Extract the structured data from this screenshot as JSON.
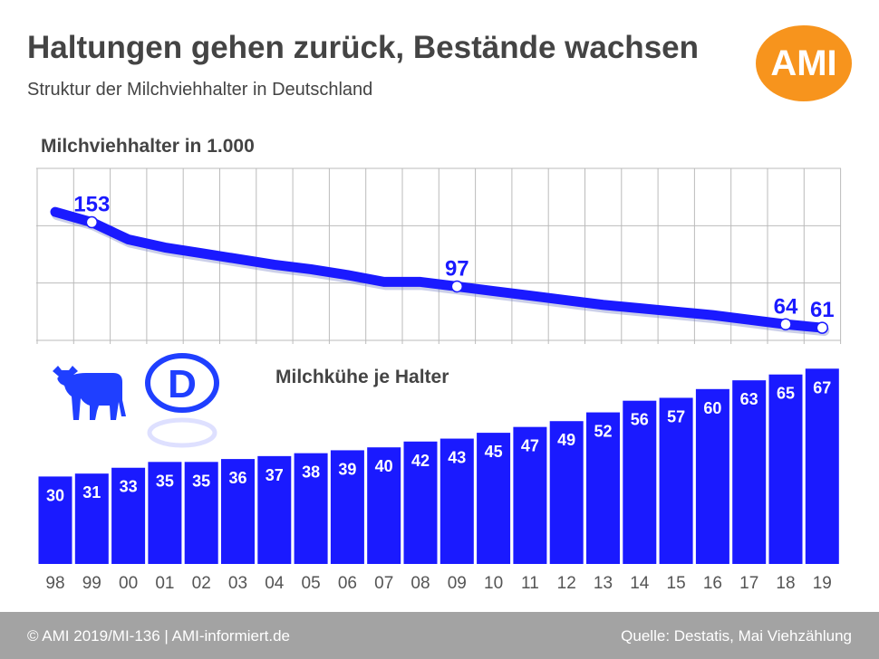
{
  "title": "Haltungen gehen zurück, Bestände wachsen",
  "subtitle": "Struktur der Milchviehhalter in Deutschland",
  "logo": "AMI",
  "footer": {
    "left": "© AMI 2019/MI-136 | AMI-informiert.de",
    "right": "Quelle: Destatis, Mai Viehzählung"
  },
  "country_badge": "D",
  "colors": {
    "series": "#1a1aff",
    "logo": "#f7941d",
    "footer": "#a3a3a3"
  },
  "chart_data": [
    {
      "type": "line",
      "title": "Milchviehhalter in 1.000",
      "x": [
        "98",
        "99",
        "00",
        "01",
        "02",
        "03",
        "04",
        "05",
        "06",
        "07",
        "08",
        "09",
        "10",
        "11",
        "12",
        "13",
        "14",
        "15",
        "16",
        "17",
        "18",
        "19"
      ],
      "values": [
        162,
        153,
        138,
        131,
        126,
        121,
        116,
        112,
        107,
        101,
        101,
        97,
        93,
        89,
        85,
        81,
        78,
        75,
        72,
        68,
        64,
        61
      ],
      "labeled_points": {
        "99": "153",
        "09": "97",
        "18": "64",
        "19": "61"
      },
      "ylim": [
        50,
        200
      ],
      "grid": true
    },
    {
      "type": "bar",
      "title": "Milchkühe je Halter",
      "categories": [
        "98",
        "99",
        "00",
        "01",
        "02",
        "03",
        "04",
        "05",
        "06",
        "07",
        "08",
        "09",
        "10",
        "11",
        "12",
        "13",
        "14",
        "15",
        "16",
        "17",
        "18",
        "19"
      ],
      "values": [
        30,
        31,
        33,
        35,
        35,
        36,
        37,
        38,
        39,
        40,
        42,
        43,
        45,
        47,
        49,
        52,
        56,
        57,
        60,
        63,
        65,
        67
      ]
    }
  ]
}
